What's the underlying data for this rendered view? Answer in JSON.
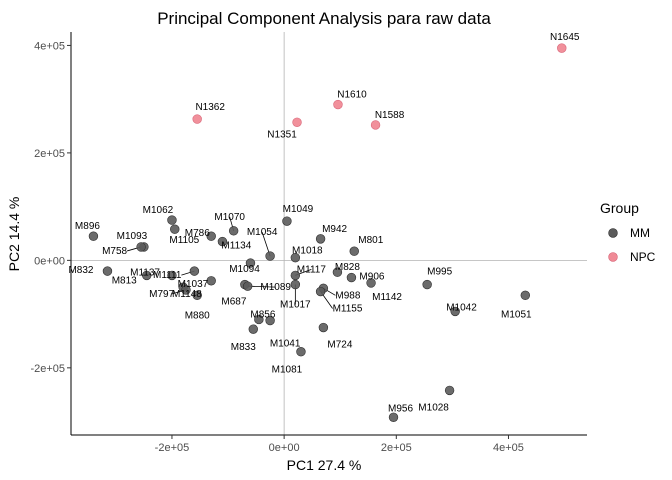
{
  "chart_data": {
    "type": "scatter",
    "title": "Principal Component Analysis para raw data",
    "xlabel": "PC1 27.4 %",
    "ylabel": "PC2 14.4 %",
    "xlim": [
      -380000,
      540000
    ],
    "ylim": [
      -325000,
      425000
    ],
    "x_ticks": [
      {
        "value": -200000,
        "label": "-2e+05"
      },
      {
        "value": 0,
        "label": "0e+00"
      },
      {
        "value": 200000,
        "label": "2e+05"
      },
      {
        "value": 400000,
        "label": "4e+05"
      }
    ],
    "y_ticks": [
      {
        "value": -200000,
        "label": "-2e+05"
      },
      {
        "value": 0,
        "label": "0e+00"
      },
      {
        "value": 200000,
        "label": "2e+05"
      },
      {
        "value": 400000,
        "label": "4e+05"
      }
    ],
    "reference_lines": {
      "x": 0,
      "y": 0
    },
    "grid": false,
    "legend": {
      "title": "Group",
      "position": "right",
      "entries": [
        {
          "name": "MM",
          "color": "#5b5b5b"
        },
        {
          "name": "NPC",
          "color": "#f08a96"
        }
      ]
    },
    "points": [
      {
        "label": "N1645",
        "group": "NPC",
        "x": 495000,
        "y": 395000
      },
      {
        "label": "N1610",
        "group": "NPC",
        "x": 96000,
        "y": 290000
      },
      {
        "label": "N1588",
        "group": "NPC",
        "x": 163000,
        "y": 252000
      },
      {
        "label": "N1362",
        "group": "NPC",
        "x": -155000,
        "y": 263000
      },
      {
        "label": "N1351",
        "group": "NPC",
        "x": 23000,
        "y": 257000
      },
      {
        "label": "M896",
        "group": "MM",
        "x": -340000,
        "y": 45000
      },
      {
        "label": "M1062",
        "group": "MM",
        "x": -200000,
        "y": 75000
      },
      {
        "label": "M786",
        "group": "MM",
        "x": -195000,
        "y": 58000
      },
      {
        "label": "M1070",
        "group": "MM",
        "x": -90000,
        "y": 55000
      },
      {
        "label": "M1049",
        "group": "MM",
        "x": 5000,
        "y": 73000
      },
      {
        "label": "M942",
        "group": "MM",
        "x": 65000,
        "y": 40000
      },
      {
        "label": "M1093",
        "group": "MM",
        "x": -250000,
        "y": 25000
      },
      {
        "label": "M758",
        "group": "MM",
        "x": -255000,
        "y": 25000
      },
      {
        "label": "M1105",
        "group": "MM",
        "x": -130000,
        "y": 45000
      },
      {
        "label": "M1134",
        "group": "MM",
        "x": -110000,
        "y": 35000
      },
      {
        "label": "M1054",
        "group": "MM",
        "x": -25000,
        "y": 8000
      },
      {
        "label": "M1018",
        "group": "MM",
        "x": 20000,
        "y": 5000
      },
      {
        "label": "M801",
        "group": "MM",
        "x": 125000,
        "y": 17000
      },
      {
        "label": "M832",
        "group": "MM",
        "x": -315000,
        "y": -20000
      },
      {
        "label": "M813",
        "group": "MM",
        "x": -245000,
        "y": -28000
      },
      {
        "label": "M1137",
        "group": "MM",
        "x": -200000,
        "y": -28000
      },
      {
        "label": "M1111",
        "group": "MM",
        "x": -160000,
        "y": -20000
      },
      {
        "label": "M1094",
        "group": "MM",
        "x": -60000,
        "y": -5000
      },
      {
        "label": "M828",
        "group": "MM",
        "x": 95000,
        "y": -22000
      },
      {
        "label": "M906",
        "group": "MM",
        "x": 120000,
        "y": -32000
      },
      {
        "label": "M995",
        "group": "MM",
        "x": 255000,
        "y": -45000
      },
      {
        "label": "M1037",
        "group": "MM",
        "x": -130000,
        "y": -38000
      },
      {
        "label": "M1117",
        "group": "MM",
        "x": 20000,
        "y": -28000
      },
      {
        "label": "M797",
        "group": "MM",
        "x": -180000,
        "y": -50000
      },
      {
        "label": "M1148",
        "group": "MM",
        "x": -175000,
        "y": -55000
      },
      {
        "label": "M687",
        "group": "MM",
        "x": -70000,
        "y": -45000
      },
      {
        "label": "M1089",
        "group": "MM",
        "x": -65000,
        "y": -48000
      },
      {
        "label": "M1017",
        "group": "MM",
        "x": 20000,
        "y": -45000
      },
      {
        "label": "M988",
        "group": "MM",
        "x": 70000,
        "y": -52000
      },
      {
        "label": "M1142",
        "group": "MM",
        "x": 155000,
        "y": -42000
      },
      {
        "label": "M1051",
        "group": "MM",
        "x": 430000,
        "y": -65000
      },
      {
        "label": "M1042",
        "group": "MM",
        "x": 305000,
        "y": -95000
      },
      {
        "label": "M880",
        "group": "MM",
        "x": -155000,
        "y": -65000
      },
      {
        "label": "M1155",
        "group": "MM",
        "x": 65000,
        "y": -58000
      },
      {
        "label": "M856",
        "group": "MM",
        "x": -45000,
        "y": -110000
      },
      {
        "label": "M833",
        "group": "MM",
        "x": -55000,
        "y": -128000
      },
      {
        "label": "M1041",
        "group": "MM",
        "x": -25000,
        "y": -112000
      },
      {
        "label": "M724",
        "group": "MM",
        "x": 70000,
        "y": -125000
      },
      {
        "label": "M1081",
        "group": "MM",
        "x": 30000,
        "y": -170000
      },
      {
        "label": "M1028",
        "group": "MM",
        "x": 295000,
        "y": -242000
      },
      {
        "label": "M956",
        "group": "MM",
        "x": 195000,
        "y": -292000
      }
    ]
  }
}
